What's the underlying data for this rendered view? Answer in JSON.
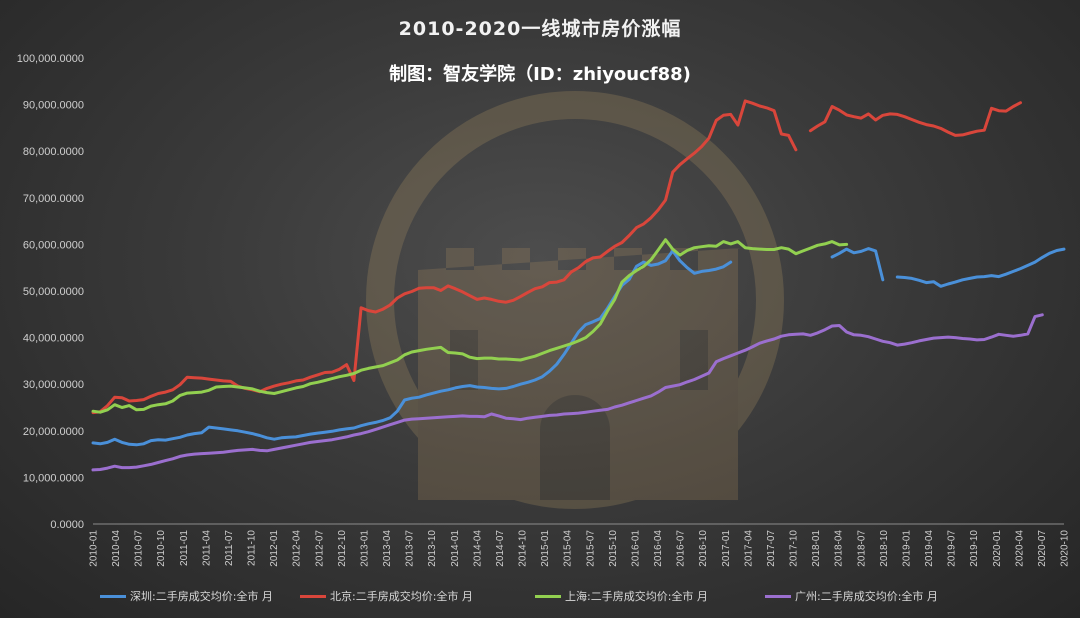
{
  "chart_data": {
    "type": "line",
    "title": "2010-2020一线城市房价涨幅",
    "subtitle": "制图：智友学院（ID：zhiyoucf88)",
    "ylim": [
      0,
      100000
    ],
    "y_ticks": [
      "0.0000",
      "10,000.0000",
      "20,000.0000",
      "30,000.0000",
      "40,000.0000",
      "50,000.0000",
      "60,000.0000",
      "70,000.0000",
      "80,000.0000",
      "90,000.0000",
      "100,000.0000"
    ],
    "x_ticks": [
      "2010-01",
      "2010-04",
      "2010-07",
      "2010-10",
      "2011-01",
      "2011-04",
      "2011-07",
      "2011-10",
      "2012-01",
      "2012-04",
      "2012-07",
      "2012-10",
      "2013-01",
      "2013-04",
      "2013-07",
      "2013-10",
      "2014-01",
      "2014-04",
      "2014-07",
      "2014-10",
      "2015-01",
      "2015-04",
      "2015-07",
      "2015-10",
      "2016-01",
      "2016-04",
      "2016-07",
      "2016-10",
      "2017-01",
      "2017-04",
      "2017-07",
      "2017-10",
      "2018-01",
      "2018-04",
      "2018-07",
      "2018-10",
      "2019-01",
      "2019-04",
      "2019-07",
      "2019-10",
      "2020-01",
      "2020-04",
      "2020-07",
      "2020-10"
    ],
    "grid": false,
    "legend": "bottom",
    "series": [
      {
        "name": "深圳:二手房成交均价:全市 月",
        "color": "#4a90d9",
        "values": [
          17400,
          17200,
          17500,
          18200,
          17500,
          17100,
          17000,
          17200,
          17900,
          18100,
          18000,
          18300,
          18600,
          19100,
          19400,
          19600,
          20800,
          20600,
          20400,
          20200,
          20000,
          19700,
          19400,
          19000,
          18500,
          18200,
          18500,
          18600,
          18700,
          19000,
          19300,
          19500,
          19700,
          19900,
          20200,
          20400,
          20600,
          21100,
          21500,
          21800,
          22200,
          22800,
          24200,
          26600,
          27000,
          27200,
          27700,
          28100,
          28500,
          28800,
          29200,
          29500,
          29700,
          29400,
          29300,
          29100,
          29000,
          29100,
          29500,
          30000,
          30400,
          30900,
          31600,
          32800,
          34300,
          36400,
          38800,
          41200,
          42800,
          43400,
          44100,
          46300,
          48800,
          51200,
          52500,
          55300,
          56200,
          55500,
          55800,
          56500,
          58600,
          56500,
          55000,
          53800,
          54200,
          54400,
          54700,
          55200,
          56200,
          null,
          null,
          null,
          null,
          null,
          null,
          null,
          null,
          null,
          null,
          null,
          null,
          null,
          57300,
          58100,
          59000,
          58200,
          58500,
          59100,
          58600,
          52400,
          null,
          53000,
          52900,
          52700,
          52300,
          51800,
          52000,
          51000,
          51500,
          51900,
          52400,
          52700,
          53000,
          53100,
          53300,
          53100,
          53600,
          54200,
          54800,
          55500,
          56200,
          57200,
          58100,
          58700,
          59000
        ]
      },
      {
        "name": "北京:二手房成交均价:全市 月",
        "color": "#d9463b",
        "values": [
          23900,
          24100,
          25400,
          27200,
          27100,
          26400,
          26500,
          26700,
          27400,
          28000,
          28300,
          28800,
          29900,
          31500,
          31400,
          31300,
          31100,
          30900,
          30700,
          30600,
          29600,
          29100,
          28800,
          28400,
          29100,
          29600,
          30000,
          30300,
          30700,
          30900,
          31500,
          32000,
          32500,
          32600,
          33200,
          34200,
          30800,
          46400,
          45800,
          45500,
          46100,
          47000,
          48500,
          49400,
          49900,
          50600,
          50700,
          50700,
          50100,
          51100,
          50500,
          49800,
          49000,
          48200,
          48500,
          48200,
          47800,
          47600,
          48000,
          48800,
          49700,
          50500,
          50900,
          51800,
          51900,
          52400,
          54100,
          55000,
          56300,
          57100,
          57300,
          58500,
          59600,
          60400,
          61900,
          63600,
          64400,
          65700,
          67400,
          69500,
          75500,
          77100,
          78400,
          79600,
          81000,
          82800,
          86600,
          87700,
          87900,
          85600,
          90800,
          90300,
          89700,
          89300,
          88700,
          83700,
          83400,
          80300,
          null,
          84400,
          85400,
          86300,
          89600,
          88800,
          87800,
          87400,
          87100,
          88000,
          86700,
          87700,
          88000,
          87900,
          87400,
          86800,
          86200,
          85700,
          85400,
          84900,
          84100,
          83400,
          83500,
          83900,
          84300,
          84500,
          89200,
          88700,
          88600,
          89600,
          90400
        ]
      },
      {
        "name": "上海:二手房成交均价:全市 月",
        "color": "#92d050",
        "values": [
          24200,
          24000,
          24500,
          25600,
          25000,
          25400,
          24500,
          24600,
          25300,
          25600,
          25800,
          26400,
          27600,
          28100,
          28200,
          28300,
          28700,
          29400,
          29500,
          29600,
          29400,
          29200,
          29000,
          28500,
          28200,
          28000,
          28400,
          28800,
          29200,
          29500,
          30100,
          30400,
          30800,
          31200,
          31600,
          31900,
          32300,
          33000,
          33400,
          33700,
          34000,
          34600,
          35200,
          36300,
          36900,
          37200,
          37500,
          37700,
          37900,
          36800,
          36700,
          36500,
          35800,
          35500,
          35600,
          35600,
          35400,
          35400,
          35300,
          35200,
          35600,
          36000,
          36600,
          37200,
          37700,
          38200,
          38700,
          39300,
          40000,
          41300,
          42900,
          45700,
          48200,
          51900,
          53300,
          54400,
          55300,
          56700,
          58800,
          61000,
          59000,
          57700,
          58700,
          59300,
          59500,
          59700,
          59600,
          60600,
          60100,
          60600,
          59300,
          59100,
          59000,
          58900,
          58900,
          59300,
          59000,
          58000,
          58600,
          59200,
          59800,
          60100,
          60600,
          59900,
          60000
        ]
      },
      {
        "name": "广州:二手房成交均价:全市 月",
        "color": "#9b6fcf",
        "values": [
          11600,
          11700,
          12000,
          12400,
          12100,
          12100,
          12200,
          12500,
          12800,
          13200,
          13600,
          14000,
          14500,
          14800,
          15000,
          15100,
          15200,
          15300,
          15400,
          15600,
          15800,
          15900,
          16000,
          15800,
          15700,
          16000,
          16300,
          16600,
          16900,
          17200,
          17500,
          17700,
          17900,
          18100,
          18400,
          18700,
          19100,
          19400,
          19800,
          20300,
          20800,
          21300,
          21800,
          22300,
          22500,
          22600,
          22700,
          22800,
          22900,
          23000,
          23100,
          23200,
          23100,
          23100,
          23000,
          23600,
          23200,
          22700,
          22600,
          22400,
          22700,
          22900,
          23100,
          23300,
          23400,
          23600,
          23700,
          23800,
          24000,
          24200,
          24400,
          24600,
          25100,
          25500,
          26000,
          26500,
          27000,
          27500,
          28300,
          29300,
          29600,
          29900,
          30500,
          31000,
          31700,
          32400,
          34800,
          35500,
          36100,
          36700,
          37300,
          38000,
          38800,
          39300,
          39700,
          40300,
          40600,
          40700,
          40800,
          40500,
          41000,
          41700,
          42500,
          42600,
          41200,
          40600,
          40500,
          40200,
          39700,
          39200,
          38900,
          38400,
          38600,
          38900,
          39300,
          39600,
          39900,
          40000,
          40100,
          40000,
          39800,
          39700,
          39500,
          39600,
          40100,
          40700,
          40500,
          40300,
          40500,
          40800,
          44500,
          44900
        ]
      }
    ]
  }
}
